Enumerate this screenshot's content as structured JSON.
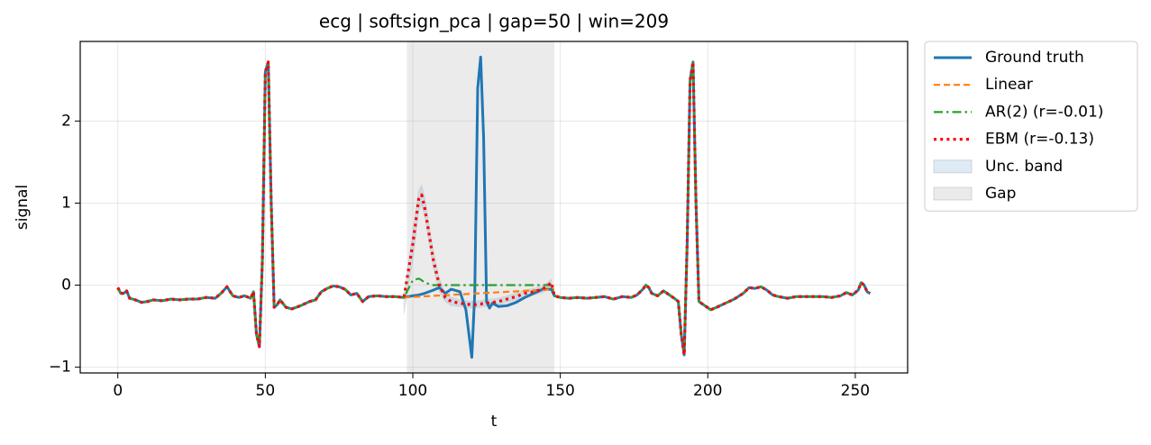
{
  "chart_data": {
    "type": "line",
    "title": "ecg | softsign_pca | gap=50 | win=209",
    "xlabel": "t",
    "ylabel": "signal",
    "xlim": [
      -12.75,
      267.75
    ],
    "ylim": [
      -1.07,
      2.97
    ],
    "xticks": [
      0,
      50,
      100,
      150,
      200,
      250
    ],
    "yticks": [
      {
        "value": -1,
        "label": "−1"
      },
      0,
      1,
      2
    ],
    "grid": true,
    "x": [
      0,
      1,
      2,
      3,
      4,
      6,
      8,
      10,
      12,
      15,
      18,
      21,
      24,
      27,
      30,
      33,
      35,
      37,
      39,
      41,
      43,
      45,
      46,
      47,
      48,
      49,
      50,
      51,
      52,
      53,
      54,
      55,
      57,
      59,
      62,
      65,
      67,
      69,
      71,
      73,
      75,
      77,
      79,
      81,
      83,
      85,
      88,
      91,
      94,
      97,
      100,
      102,
      103,
      104,
      107,
      109,
      111,
      113,
      116,
      118,
      120,
      121,
      122,
      123,
      124,
      125,
      126,
      127,
      129,
      132,
      135,
      138,
      141,
      144,
      147,
      148,
      150,
      153,
      156,
      159,
      162,
      165,
      168,
      171,
      174,
      176,
      178,
      179,
      180,
      181,
      183,
      185,
      187,
      189,
      190,
      191,
      192,
      193,
      194,
      195,
      196,
      197,
      199,
      201,
      203,
      206,
      209,
      212,
      214,
      216,
      218,
      220,
      222,
      224,
      227,
      230,
      233,
      236,
      239,
      242,
      245,
      247,
      249,
      251,
      252,
      253,
      254,
      255
    ],
    "gap": {
      "name": "Gap",
      "color": "#bdbdbd",
      "xspan": [
        98,
        148
      ]
    },
    "band": {
      "name": "Unc. band",
      "color": "#1f77b4",
      "x": [
        97,
        100,
        102,
        103,
        104,
        107,
        109,
        111,
        113,
        116,
        118,
        120,
        121,
        122,
        123,
        124,
        125,
        126,
        127,
        129,
        132,
        135,
        138,
        141,
        144,
        147
      ],
      "lower": [
        -0.35,
        0.3,
        0.9,
        0.98,
        0.85,
        0.2,
        -0.08,
        -0.2,
        -0.25,
        -0.26,
        -0.27,
        -0.28,
        -0.28,
        -0.27,
        -0.27,
        -0.26,
        -0.26,
        -0.25,
        -0.25,
        -0.24,
        -0.21,
        -0.18,
        -0.14,
        -0.12,
        -0.09,
        -0.02
      ],
      "upper": [
        -0.1,
        0.65,
        1.15,
        1.22,
        1.08,
        0.4,
        0.08,
        -0.1,
        -0.15,
        -0.18,
        -0.19,
        -0.2,
        -0.2,
        -0.19,
        -0.19,
        -0.18,
        -0.18,
        -0.17,
        -0.17,
        -0.16,
        -0.13,
        -0.1,
        -0.06,
        -0.04,
        -0.01,
        0.07
      ]
    },
    "series": [
      {
        "name": "Ground truth",
        "color": "#1f77b4",
        "style": "solid",
        "values": [
          -0.03,
          -0.1,
          -0.1,
          -0.07,
          -0.16,
          -0.18,
          -0.21,
          -0.2,
          -0.18,
          -0.19,
          -0.17,
          -0.18,
          -0.17,
          -0.17,
          -0.15,
          -0.16,
          -0.1,
          -0.02,
          -0.13,
          -0.15,
          -0.13,
          -0.16,
          -0.08,
          -0.6,
          -0.75,
          0.3,
          2.6,
          2.72,
          1.0,
          -0.27,
          -0.24,
          -0.18,
          -0.27,
          -0.29,
          -0.25,
          -0.2,
          -0.18,
          -0.08,
          -0.04,
          -0.01,
          -0.02,
          -0.05,
          -0.12,
          -0.1,
          -0.2,
          -0.14,
          -0.13,
          -0.14,
          -0.14,
          -0.15,
          -0.13,
          -0.12,
          -0.11,
          -0.1,
          -0.06,
          -0.03,
          -0.1,
          -0.05,
          -0.08,
          -0.3,
          -0.88,
          -0.1,
          2.4,
          2.78,
          1.8,
          -0.2,
          -0.28,
          -0.22,
          -0.26,
          -0.25,
          -0.21,
          -0.15,
          -0.1,
          -0.05,
          -0.05,
          -0.13,
          -0.15,
          -0.16,
          -0.15,
          -0.16,
          -0.15,
          -0.14,
          -0.17,
          -0.14,
          -0.15,
          -0.12,
          -0.05,
          0,
          -0.03,
          -0.1,
          -0.13,
          -0.07,
          -0.12,
          -0.17,
          -0.2,
          -0.6,
          -0.85,
          0.5,
          2.5,
          2.72,
          1.0,
          -0.2,
          -0.25,
          -0.3,
          -0.27,
          -0.22,
          -0.17,
          -0.1,
          -0.03,
          -0.04,
          -0.02,
          -0.06,
          -0.12,
          -0.14,
          -0.16,
          -0.14,
          -0.14,
          -0.14,
          -0.14,
          -0.15,
          -0.13,
          -0.09,
          -0.12,
          -0.06,
          0.03,
          0,
          -0.08,
          -0.1
        ]
      },
      {
        "name": "Linear",
        "color": "#ff7f0e",
        "style": "dashed",
        "x": [
          97,
          148
        ],
        "values": [
          -0.15,
          -0.05
        ]
      },
      {
        "name": "AR(2) (r=-0.01)",
        "color": "#2ca02c",
        "style": "dashdot",
        "values": [
          -0.03,
          -0.1,
          -0.1,
          -0.07,
          -0.16,
          -0.18,
          -0.21,
          -0.2,
          -0.18,
          -0.19,
          -0.17,
          -0.18,
          -0.17,
          -0.17,
          -0.15,
          -0.16,
          -0.1,
          -0.02,
          -0.13,
          -0.15,
          -0.13,
          -0.16,
          -0.08,
          -0.6,
          -0.75,
          0.3,
          2.6,
          2.72,
          1.0,
          -0.27,
          -0.24,
          -0.18,
          -0.27,
          -0.29,
          -0.25,
          -0.2,
          -0.18,
          -0.08,
          -0.04,
          -0.01,
          -0.02,
          -0.05,
          -0.12,
          -0.1,
          -0.2,
          -0.14,
          -0.13,
          -0.14,
          -0.14,
          -0.15,
          0.06,
          0.08,
          0.06,
          0.03,
          0,
          0,
          0,
          0,
          0,
          0,
          0,
          0,
          0,
          0,
          0,
          0,
          0,
          0,
          0,
          0,
          0,
          0,
          0,
          0,
          0,
          -0.13,
          -0.15,
          -0.16,
          -0.15,
          -0.16,
          -0.15,
          -0.14,
          -0.17,
          -0.14,
          -0.15,
          -0.12,
          -0.05,
          0,
          -0.03,
          -0.1,
          -0.13,
          -0.07,
          -0.12,
          -0.17,
          -0.2,
          -0.6,
          -0.85,
          0.5,
          2.5,
          2.72,
          1.0,
          -0.2,
          -0.25,
          -0.3,
          -0.27,
          -0.22,
          -0.17,
          -0.1,
          -0.03,
          -0.04,
          -0.02,
          -0.06,
          -0.12,
          -0.14,
          -0.16,
          -0.14,
          -0.14,
          -0.14,
          -0.14,
          -0.15,
          -0.13,
          -0.09,
          -0.12,
          -0.06,
          0.03,
          0,
          -0.08,
          -0.1
        ]
      },
      {
        "name": "EBM (r=-0.13)",
        "color": "#ff0000",
        "style": "dotted",
        "values": [
          -0.03,
          -0.1,
          -0.1,
          -0.07,
          -0.16,
          -0.18,
          -0.21,
          -0.2,
          -0.18,
          -0.19,
          -0.17,
          -0.18,
          -0.17,
          -0.17,
          -0.15,
          -0.16,
          -0.1,
          -0.02,
          -0.13,
          -0.15,
          -0.13,
          -0.16,
          -0.08,
          -0.6,
          -0.75,
          0.3,
          2.6,
          2.72,
          1.0,
          -0.27,
          -0.24,
          -0.18,
          -0.27,
          -0.29,
          -0.25,
          -0.2,
          -0.18,
          -0.08,
          -0.04,
          -0.01,
          -0.02,
          -0.05,
          -0.12,
          -0.1,
          -0.2,
          -0.14,
          -0.13,
          -0.14,
          -0.14,
          -0.15,
          0.5,
          1.05,
          1.1,
          0.95,
          0.3,
          0,
          -0.15,
          -0.2,
          -0.22,
          -0.23,
          -0.24,
          -0.24,
          -0.23,
          -0.23,
          -0.22,
          -0.22,
          -0.21,
          -0.21,
          -0.2,
          -0.17,
          -0.14,
          -0.1,
          -0.08,
          -0.05,
          0.03,
          -0.13,
          -0.15,
          -0.16,
          -0.15,
          -0.16,
          -0.15,
          -0.14,
          -0.17,
          -0.14,
          -0.15,
          -0.12,
          -0.05,
          0,
          -0.03,
          -0.1,
          -0.13,
          -0.07,
          -0.12,
          -0.17,
          -0.2,
          -0.6,
          -0.85,
          0.5,
          2.5,
          2.72,
          1.0,
          -0.2,
          -0.25,
          -0.3,
          -0.27,
          -0.22,
          -0.17,
          -0.1,
          -0.03,
          -0.04,
          -0.02,
          -0.06,
          -0.12,
          -0.14,
          -0.16,
          -0.14,
          -0.14,
          -0.14,
          -0.14,
          -0.15,
          -0.13,
          -0.09,
          -0.12,
          -0.06,
          0.03,
          0,
          -0.08,
          -0.1
        ]
      }
    ]
  }
}
